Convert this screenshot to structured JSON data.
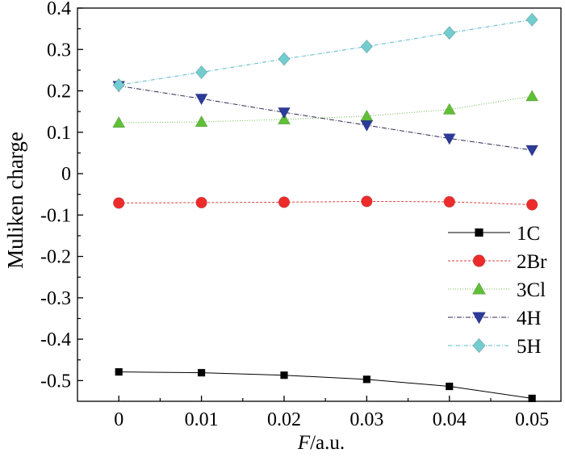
{
  "chart_data": {
    "type": "line",
    "title": "",
    "xlabel": "/a.u.",
    "xlabel_italic_prefix": "F",
    "ylabel": "Muliken charge",
    "x": [
      0,
      0.01,
      0.02,
      0.03,
      0.04,
      0.05
    ],
    "xticks": [
      "0",
      "0.01",
      "0.02",
      "0.03",
      "0.04",
      "0.05"
    ],
    "yticks": [
      "0.4",
      "0.3",
      "0.2",
      "0.1",
      "0",
      "-0.1",
      "-0.2",
      "-0.3",
      "-0.4",
      "-0.5"
    ],
    "ytick_values": [
      0.4,
      0.3,
      0.2,
      0.1,
      0,
      -0.1,
      -0.2,
      -0.3,
      -0.4,
      -0.5
    ],
    "xlim": [
      -0.005,
      0.0535
    ],
    "ylim": [
      -0.55,
      0.4
    ],
    "legend_position": "bottom-right",
    "series": [
      {
        "name": "1C",
        "marker": "square",
        "color": "#000000",
        "line_color": "#000000",
        "dash": "",
        "values": [
          -0.479,
          -0.481,
          -0.487,
          -0.497,
          -0.514,
          -0.543
        ]
      },
      {
        "name": "2Br",
        "marker": "circle",
        "color": "#ee2b2b",
        "line_color": "#d84040",
        "dash": "3,2",
        "values": [
          -0.071,
          -0.07,
          -0.069,
          -0.067,
          -0.068,
          -0.075
        ]
      },
      {
        "name": "3Cl",
        "marker": "triangle-up",
        "color": "#5fc036",
        "line_color": "#6fb84a",
        "dash": "1,2",
        "values": [
          0.123,
          0.125,
          0.131,
          0.139,
          0.155,
          0.187
        ]
      },
      {
        "name": "4H",
        "marker": "triangle-down",
        "color": "#2c3a9a",
        "line_color": "#2a2a55",
        "dash": "6,2,1,2",
        "values": [
          0.212,
          0.181,
          0.148,
          0.117,
          0.085,
          0.057
        ]
      },
      {
        "name": "5H",
        "marker": "diamond",
        "color": "#72ccd0",
        "line_color": "#58b8c8",
        "dash": "5,2,1,2",
        "values": [
          0.214,
          0.245,
          0.277,
          0.307,
          0.34,
          0.372
        ]
      }
    ]
  }
}
